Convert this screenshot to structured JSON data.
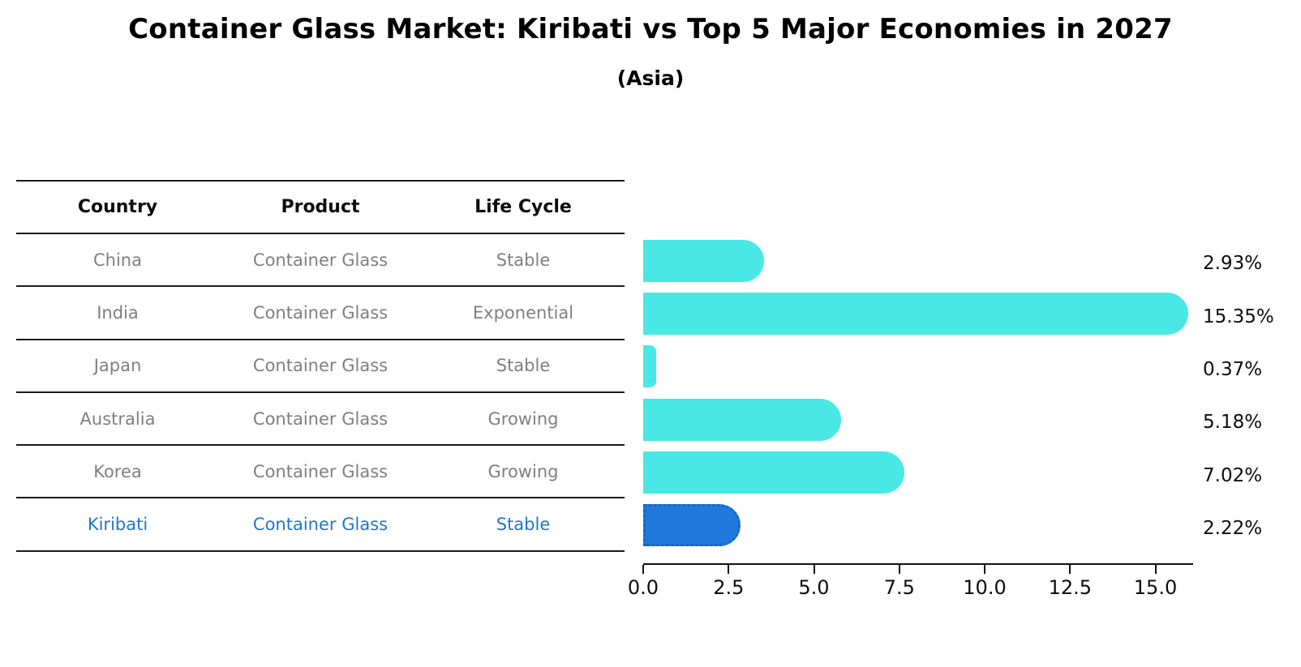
{
  "title": "Container Glass Market: Kiribati vs Top 5 Major Economies in 2027",
  "subtitle": "(Asia)",
  "table": {
    "headers": [
      "Country",
      "Product",
      "Life Cycle"
    ],
    "rows": [
      {
        "country": "China",
        "product": "Container Glass",
        "life_cycle": "Stable",
        "highlight": false
      },
      {
        "country": "India",
        "product": "Container Glass",
        "life_cycle": "Exponential",
        "highlight": false
      },
      {
        "country": "Japan",
        "product": "Container Glass",
        "life_cycle": "Stable",
        "highlight": false
      },
      {
        "country": "Australia",
        "product": "Container Glass",
        "life_cycle": "Growing",
        "highlight": false
      },
      {
        "country": "Korea",
        "product": "Container Glass",
        "life_cycle": "Growing",
        "highlight": false
      },
      {
        "country": "Kiribati",
        "product": "Container Glass",
        "life_cycle": "Stable",
        "highlight": true
      }
    ]
  },
  "chart_data": {
    "type": "bar",
    "orientation": "horizontal",
    "title": "Container Glass Market: Kiribati vs Top 5 Major Economies in 2027",
    "subtitle": "(Asia)",
    "categories": [
      "China",
      "India",
      "Japan",
      "Australia",
      "Korea",
      "Kiribati"
    ],
    "values": [
      2.93,
      15.35,
      0.37,
      5.18,
      7.02,
      2.22
    ],
    "value_labels": [
      "2.93%",
      "15.35%",
      "0.37%",
      "5.18%",
      "7.02%",
      "2.22%"
    ],
    "highlight_category": "Kiribati",
    "x_ticks": [
      "0.0",
      "2.5",
      "5.0",
      "7.5",
      "10.0",
      "12.5",
      "15.0"
    ],
    "xlim": [
      0,
      16.1
    ],
    "grid": false,
    "legend": false,
    "colors": {
      "default_bar": "#4ae8e4",
      "highlight_bar": "#2079db",
      "highlight_border": "#1565c0",
      "highlight_text": "#1f78c8",
      "row_text": "#7f7f7f",
      "axis": "#111111"
    }
  }
}
